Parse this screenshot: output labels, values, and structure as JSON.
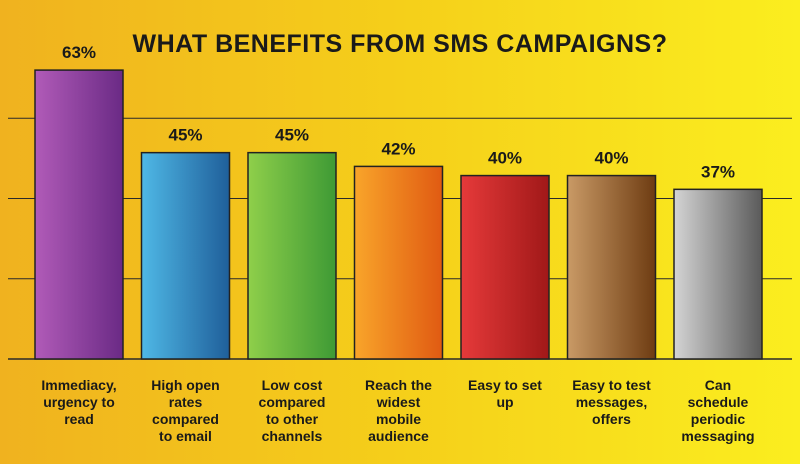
{
  "chart_data": {
    "type": "bar",
    "title": "WHAT BENEFITS FROM SMS CAMPAIGNS?",
    "xlabel": "",
    "ylabel": "",
    "ylim": [
      0,
      70
    ],
    "grid": true,
    "categories": [
      [
        "Immediacy,",
        "urgency to",
        "read"
      ],
      [
        "High open",
        "rates",
        "compared",
        "to email"
      ],
      [
        "Low cost",
        "compared",
        "to other",
        "channels"
      ],
      [
        "Reach the",
        "widest",
        "mobile",
        "audience"
      ],
      [
        "Easy to set",
        "up"
      ],
      [
        "Easy to test",
        "messages,",
        "offers"
      ],
      [
        "Can",
        "schedule",
        "periodic",
        "messaging"
      ]
    ],
    "values": [
      63,
      45,
      45,
      42,
      40,
      40,
      37
    ],
    "value_labels": [
      "63%",
      "45%",
      "45%",
      "42%",
      "40%",
      "40%",
      "37%"
    ],
    "bar_colors": [
      [
        "#b15bb8",
        "#6a2a85"
      ],
      [
        "#4fb8e6",
        "#1f5f9a"
      ],
      [
        "#8fcf4a",
        "#3e9a35"
      ],
      [
        "#f9a52a",
        "#e05a12"
      ],
      [
        "#e63a3a",
        "#a01818"
      ],
      [
        "#c99a66",
        "#6e3c12"
      ],
      [
        "#d4d4d4",
        "#5a5a5a"
      ]
    ]
  }
}
